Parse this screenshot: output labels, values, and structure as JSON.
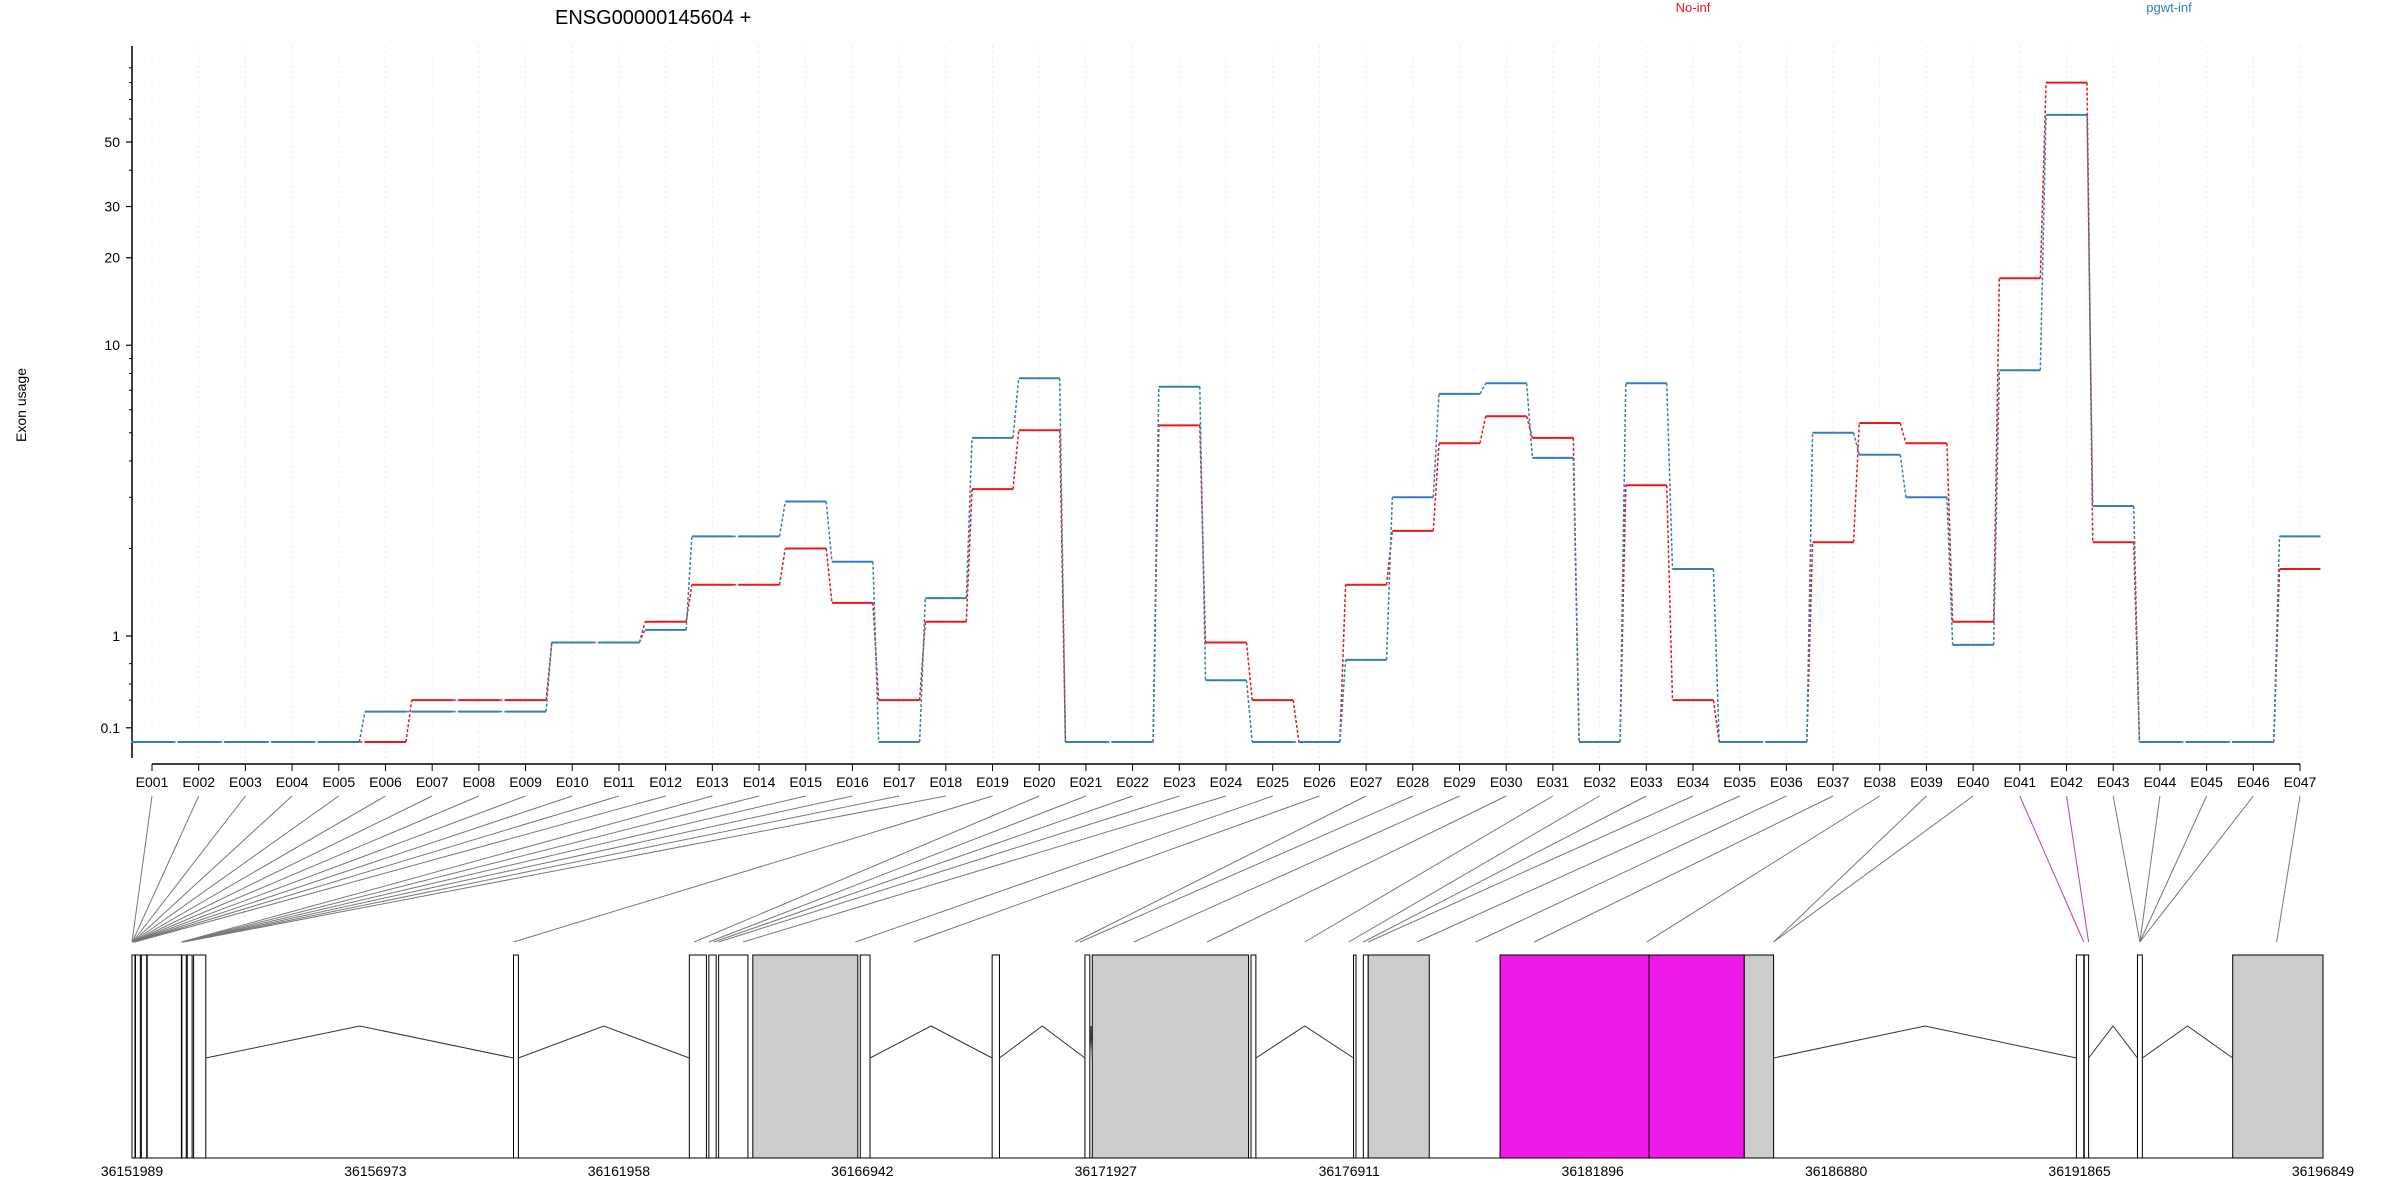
{
  "chart_data": {
    "type": "line",
    "title": "ENSG00000145604 +",
    "ylabel": "Exon usage",
    "yscale": "log",
    "ylim": [
      0.07,
      100
    ],
    "grid": true,
    "legend_position": "top-right",
    "yticks": [
      0.1,
      1,
      10,
      20,
      30,
      50
    ],
    "categories": [
      "E001",
      "E002",
      "E003",
      "E004",
      "E005",
      "E006",
      "E007",
      "E008",
      "E009",
      "E010",
      "E011",
      "E012",
      "E013",
      "E014",
      "E015",
      "E016",
      "E017",
      "E018",
      "E019",
      "E020",
      "E021",
      "E022",
      "E023",
      "E024",
      "E025",
      "E026",
      "E027",
      "E028",
      "E029",
      "E030",
      "E031",
      "E032",
      "E033",
      "E034",
      "E035",
      "E036",
      "E037",
      "E038",
      "E039",
      "E040",
      "E041",
      "E042",
      "E043",
      "E044",
      "E045",
      "E046",
      "E047"
    ],
    "series": [
      {
        "name": "No-inf",
        "color": "#e41a1c",
        "values": [
          0.07,
          0.07,
          0.07,
          0.07,
          0.07,
          0.07,
          0.2,
          0.2,
          0.2,
          0.85,
          0.85,
          1.12,
          1.5,
          1.5,
          2.0,
          1.3,
          0.2,
          1.12,
          3.2,
          5.1,
          0.07,
          0.07,
          5.3,
          0.85,
          0.2,
          0.07,
          1.5,
          2.3,
          4.6,
          5.7,
          4.8,
          0.07,
          3.3,
          0.2,
          0.07,
          0.07,
          2.1,
          5.4,
          4.6,
          1.12,
          17,
          80,
          2.1,
          0.07,
          0.07,
          0.07,
          1.7
        ]
      },
      {
        "name": "pgwt-inf",
        "color": "#377eb8",
        "values": [
          0.07,
          0.07,
          0.07,
          0.07,
          0.07,
          0.15,
          0.15,
          0.15,
          0.15,
          0.85,
          0.85,
          1.05,
          2.2,
          2.2,
          2.9,
          1.8,
          0.07,
          1.35,
          4.8,
          7.7,
          0.07,
          0.07,
          7.2,
          0.33,
          0.07,
          0.07,
          0.55,
          3.0,
          6.8,
          7.4,
          4.1,
          0.07,
          7.4,
          1.7,
          0.07,
          0.07,
          5.0,
          4.2,
          3.0,
          0.8,
          8.2,
          62,
          2.8,
          0.07,
          0.07,
          0.07,
          2.2
        ]
      }
    ],
    "genome_axis": {
      "tick_labels": [
        "36151989",
        "36156973",
        "36161958",
        "36166942",
        "36171927",
        "36176911",
        "36181896",
        "36186880",
        "36191865",
        "36196849"
      ],
      "range": [
        36151989,
        36196849
      ],
      "highlighted_exons": [
        "E041",
        "E042"
      ],
      "highlight_color": "#f01ae8",
      "exon_fill": "#cccccc"
    }
  }
}
